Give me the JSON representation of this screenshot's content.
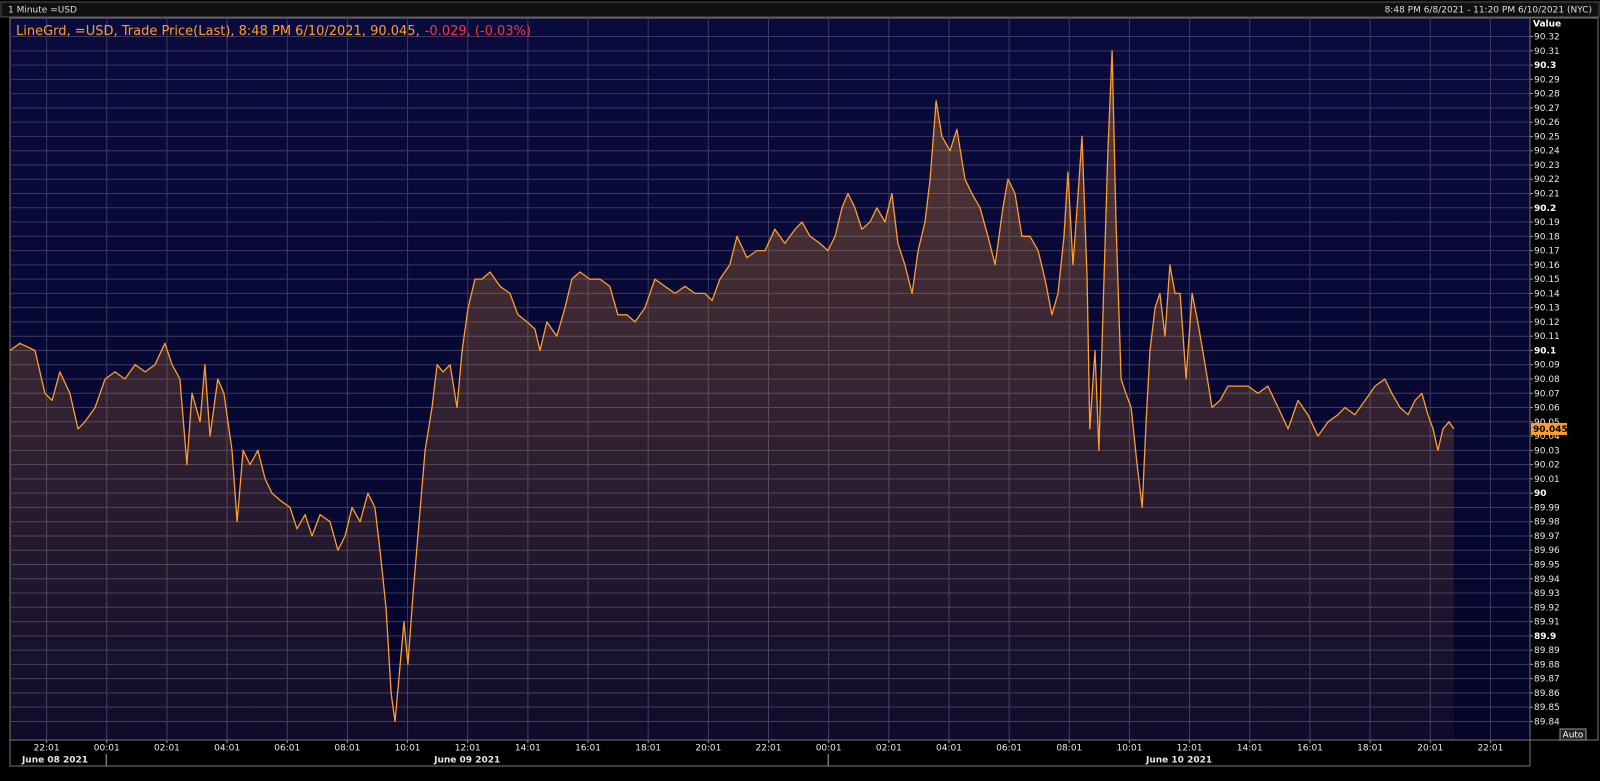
{
  "chart_data": {
    "type": "line",
    "header": {
      "left": "1 Minute =USD",
      "right": "8:48 PM 6/8/2021 - 11:20 PM 6/10/2021 (NYC)"
    },
    "legend": {
      "main": "LineGrd, =USD, Trade Price(Last), 8:48 PM 6/10/2021, 90.045,",
      "change": "-0.029, (-0.03%)"
    },
    "y_axis_title": "Value",
    "auto_button": "Auto",
    "last_value": 90.045,
    "color": "#ff9d2a",
    "grid": true,
    "date_labels": [
      "June 08 2021",
      "June 09 2021",
      "June 10 2021"
    ],
    "xlim": [
      20.8,
      71.333
    ],
    "ylim": [
      89.827,
      90.333
    ],
    "xticks": [
      {
        "value": 22.017,
        "label": "22:01"
      },
      {
        "value": 24.017,
        "label": "00:01"
      },
      {
        "value": 26.017,
        "label": "02:01"
      },
      {
        "value": 28.017,
        "label": "04:01"
      },
      {
        "value": 30.017,
        "label": "06:01"
      },
      {
        "value": 32.017,
        "label": "08:01"
      },
      {
        "value": 34.017,
        "label": "10:01"
      },
      {
        "value": 36.017,
        "label": "12:01"
      },
      {
        "value": 38.017,
        "label": "14:01"
      },
      {
        "value": 40.017,
        "label": "16:01"
      },
      {
        "value": 42.017,
        "label": "18:01"
      },
      {
        "value": 44.017,
        "label": "20:01"
      },
      {
        "value": 46.017,
        "label": "22:01"
      },
      {
        "value": 48.017,
        "label": "00:01"
      },
      {
        "value": 50.017,
        "label": "02:01"
      },
      {
        "value": 52.017,
        "label": "04:01"
      },
      {
        "value": 54.017,
        "label": "06:01"
      },
      {
        "value": 56.017,
        "label": "08:01"
      },
      {
        "value": 58.017,
        "label": "10:01"
      },
      {
        "value": 60.017,
        "label": "12:01"
      },
      {
        "value": 62.017,
        "label": "14:01"
      },
      {
        "value": 64.017,
        "label": "16:01"
      },
      {
        "value": 66.017,
        "label": "18:01"
      },
      {
        "value": 68.017,
        "label": "20:01"
      },
      {
        "value": 70.017,
        "label": "22:01"
      }
    ],
    "yticks": [
      89.84,
      89.85,
      89.86,
      89.87,
      89.88,
      89.89,
      89.9,
      89.91,
      89.92,
      89.93,
      89.94,
      89.95,
      89.96,
      89.97,
      89.98,
      89.99,
      90,
      90.01,
      90.02,
      90.03,
      90.04,
      90.05,
      90.06,
      90.07,
      90.08,
      90.09,
      90.1,
      90.11,
      90.12,
      90.13,
      90.14,
      90.15,
      90.16,
      90.17,
      90.18,
      90.19,
      90.2,
      90.21,
      90.22,
      90.23,
      90.24,
      90.25,
      90.26,
      90.27,
      90.28,
      90.29,
      90.3,
      90.31,
      90.32
    ],
    "x": [
      20.8,
      21.13,
      21.63,
      21.96,
      22.2,
      22.46,
      22.79,
      23.06,
      23.29,
      23.63,
      23.96,
      24.29,
      24.62,
      24.96,
      25.29,
      25.62,
      25.95,
      26.19,
      26.45,
      26.68,
      26.85,
      27.12,
      27.28,
      27.45,
      27.71,
      27.91,
      28.18,
      28.35,
      28.55,
      28.78,
      29.04,
      29.28,
      29.51,
      29.78,
      30.11,
      30.34,
      30.61,
      30.84,
      31.11,
      31.44,
      31.7,
      31.94,
      32.17,
      32.44,
      32.7,
      32.93,
      33.1,
      33.3,
      33.47,
      33.6,
      33.73,
      33.9,
      34.03,
      34.2,
      34.36,
      34.6,
      34.83,
      35.0,
      35.2,
      35.43,
      35.66,
      35.83,
      36.03,
      36.26,
      36.49,
      36.76,
      37.09,
      37.42,
      37.69,
      37.99,
      38.25,
      38.42,
      38.65,
      38.98,
      39.25,
      39.48,
      39.75,
      40.08,
      40.41,
      40.74,
      41.01,
      41.31,
      41.58,
      41.91,
      42.24,
      42.57,
      42.91,
      43.24,
      43.57,
      43.9,
      44.14,
      44.4,
      44.73,
      44.97,
      45.3,
      45.63,
      45.9,
      46.23,
      46.56,
      46.9,
      47.13,
      47.4,
      47.73,
      47.99,
      48.23,
      48.46,
      48.66,
      48.89,
      49.12,
      49.39,
      49.62,
      49.89,
      50.12,
      50.32,
      50.55,
      50.79,
      50.99,
      51.22,
      51.39,
      51.59,
      51.78,
      52.05,
      52.28,
      52.55,
      52.78,
      53.05,
      53.31,
      53.55,
      53.81,
      53.98,
      54.21,
      54.44,
      54.71,
      54.98,
      55.21,
      55.44,
      55.64,
      55.84,
      55.97,
      56.14,
      56.31,
      56.44,
      56.61,
      56.7,
      56.87,
      57.0,
      57.17,
      57.3,
      57.44,
      57.57,
      57.74,
      57.9,
      58.07,
      58.27,
      58.44,
      58.57,
      58.7,
      58.87,
      59.03,
      59.2,
      59.36,
      59.53,
      59.7,
      59.9,
      60.1,
      60.29,
      60.53,
      60.76,
      61.03,
      61.29,
      61.62,
      61.96,
      62.29,
      62.62,
      62.96,
      63.29,
      63.62,
      63.95,
      64.28,
      64.62,
      64.95,
      65.18,
      65.51,
      65.85,
      66.18,
      66.51,
      66.74,
      67.01,
      67.28,
      67.51,
      67.74,
      67.94,
      68.11,
      68.27,
      68.44,
      68.64,
      68.8
    ],
    "values": [
      90.1,
      90.105,
      90.1,
      90.07,
      90.065,
      90.085,
      90.07,
      90.045,
      90.05,
      90.06,
      90.08,
      90.085,
      90.08,
      90.09,
      90.085,
      90.09,
      90.105,
      90.09,
      90.08,
      90.02,
      90.07,
      90.05,
      90.09,
      90.04,
      90.08,
      90.07,
      90.03,
      89.98,
      90.03,
      90.02,
      90.03,
      90.01,
      90.0,
      89.995,
      89.99,
      89.975,
      89.985,
      89.97,
      89.985,
      89.98,
      89.96,
      89.97,
      89.99,
      89.98,
      90.0,
      89.99,
      89.96,
      89.92,
      89.86,
      89.84,
      89.87,
      89.91,
      89.88,
      89.93,
      89.97,
      90.03,
      90.06,
      90.09,
      90.085,
      90.09,
      90.06,
      90.1,
      90.13,
      90.15,
      90.15,
      90.155,
      90.145,
      90.14,
      90.125,
      90.12,
      90.115,
      90.1,
      90.12,
      90.11,
      90.13,
      90.15,
      90.155,
      90.15,
      90.15,
      90.145,
      90.125,
      90.125,
      90.12,
      90.13,
      90.15,
      90.145,
      90.14,
      90.145,
      90.14,
      90.14,
      90.135,
      90.15,
      90.16,
      90.18,
      90.165,
      90.17,
      90.17,
      90.185,
      90.175,
      90.185,
      90.19,
      90.18,
      90.175,
      90.17,
      90.18,
      90.2,
      90.21,
      90.2,
      90.185,
      90.19,
      90.2,
      90.19,
      90.21,
      90.175,
      90.16,
      90.14,
      90.17,
      90.19,
      90.22,
      90.275,
      90.25,
      90.24,
      90.255,
      90.22,
      90.21,
      90.2,
      90.18,
      90.16,
      90.2,
      90.22,
      90.21,
      90.18,
      90.18,
      90.17,
      90.15,
      90.125,
      90.14,
      90.18,
      90.225,
      90.16,
      90.21,
      90.25,
      90.15,
      90.045,
      90.1,
      90.03,
      90.15,
      90.24,
      90.31,
      90.19,
      90.08,
      90.07,
      90.06,
      90.02,
      89.99,
      90.05,
      90.1,
      90.13,
      90.14,
      90.11,
      90.16,
      90.14,
      90.14,
      90.08,
      90.14,
      90.12,
      90.09,
      90.06,
      90.065,
      90.075,
      90.075,
      90.075,
      90.07,
      90.075,
      90.06,
      90.045,
      90.065,
      90.055,
      90.04,
      90.05,
      90.055,
      90.06,
      90.055,
      90.065,
      90.075,
      90.08,
      90.07,
      90.06,
      90.055,
      90.065,
      90.07,
      90.055,
      90.045,
      90.03,
      90.045,
      90.05,
      90.045
    ]
  }
}
